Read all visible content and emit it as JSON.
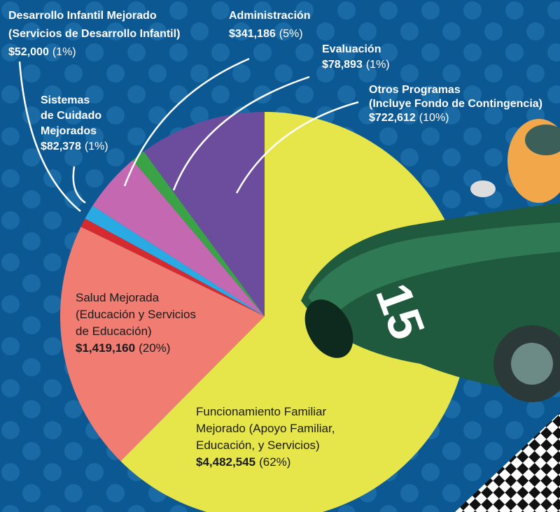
{
  "chart_data": {
    "type": "pie",
    "categories": [
      [
        "Funcionamiento Familiar",
        "Mejorado (Apoyo Familiar,",
        "Educación, y Servicios)"
      ],
      [
        "Salud Mejorada",
        "(Educación y Servicios",
        "de Educación)"
      ],
      [
        "Desarrollo Infantil Mejorado",
        "(Servicios de Desarrollo Infantil)"
      ],
      [
        "Sistemas",
        "de Cuidado",
        "Mejorados"
      ],
      [
        "Administración"
      ],
      [
        "Evaluación"
      ],
      [
        "Otros Programas",
        "(Incluye Fondo de Contingencia)"
      ]
    ],
    "values": [
      4482545,
      1419160,
      52000,
      82378,
      341186,
      78893,
      722612
    ],
    "value_labels": [
      "$4,482,545",
      "$1,419,160",
      "$52,000",
      "$82,378",
      "$341,186",
      "$78,893",
      "$722,612"
    ],
    "percentages": [
      62,
      20,
      1,
      1,
      5,
      1,
      10
    ],
    "percent_labels": [
      "(62%)",
      "(20%)",
      "(1%)",
      "(1%)",
      "(5%)",
      "(1%)",
      "(10%)"
    ],
    "colors": [
      "#e6e64a",
      "#f17c72",
      "#d52a30",
      "#2aaae2",
      "#c468b2",
      "#3aa346",
      "#6b4c9d"
    ],
    "car_number": "15"
  }
}
